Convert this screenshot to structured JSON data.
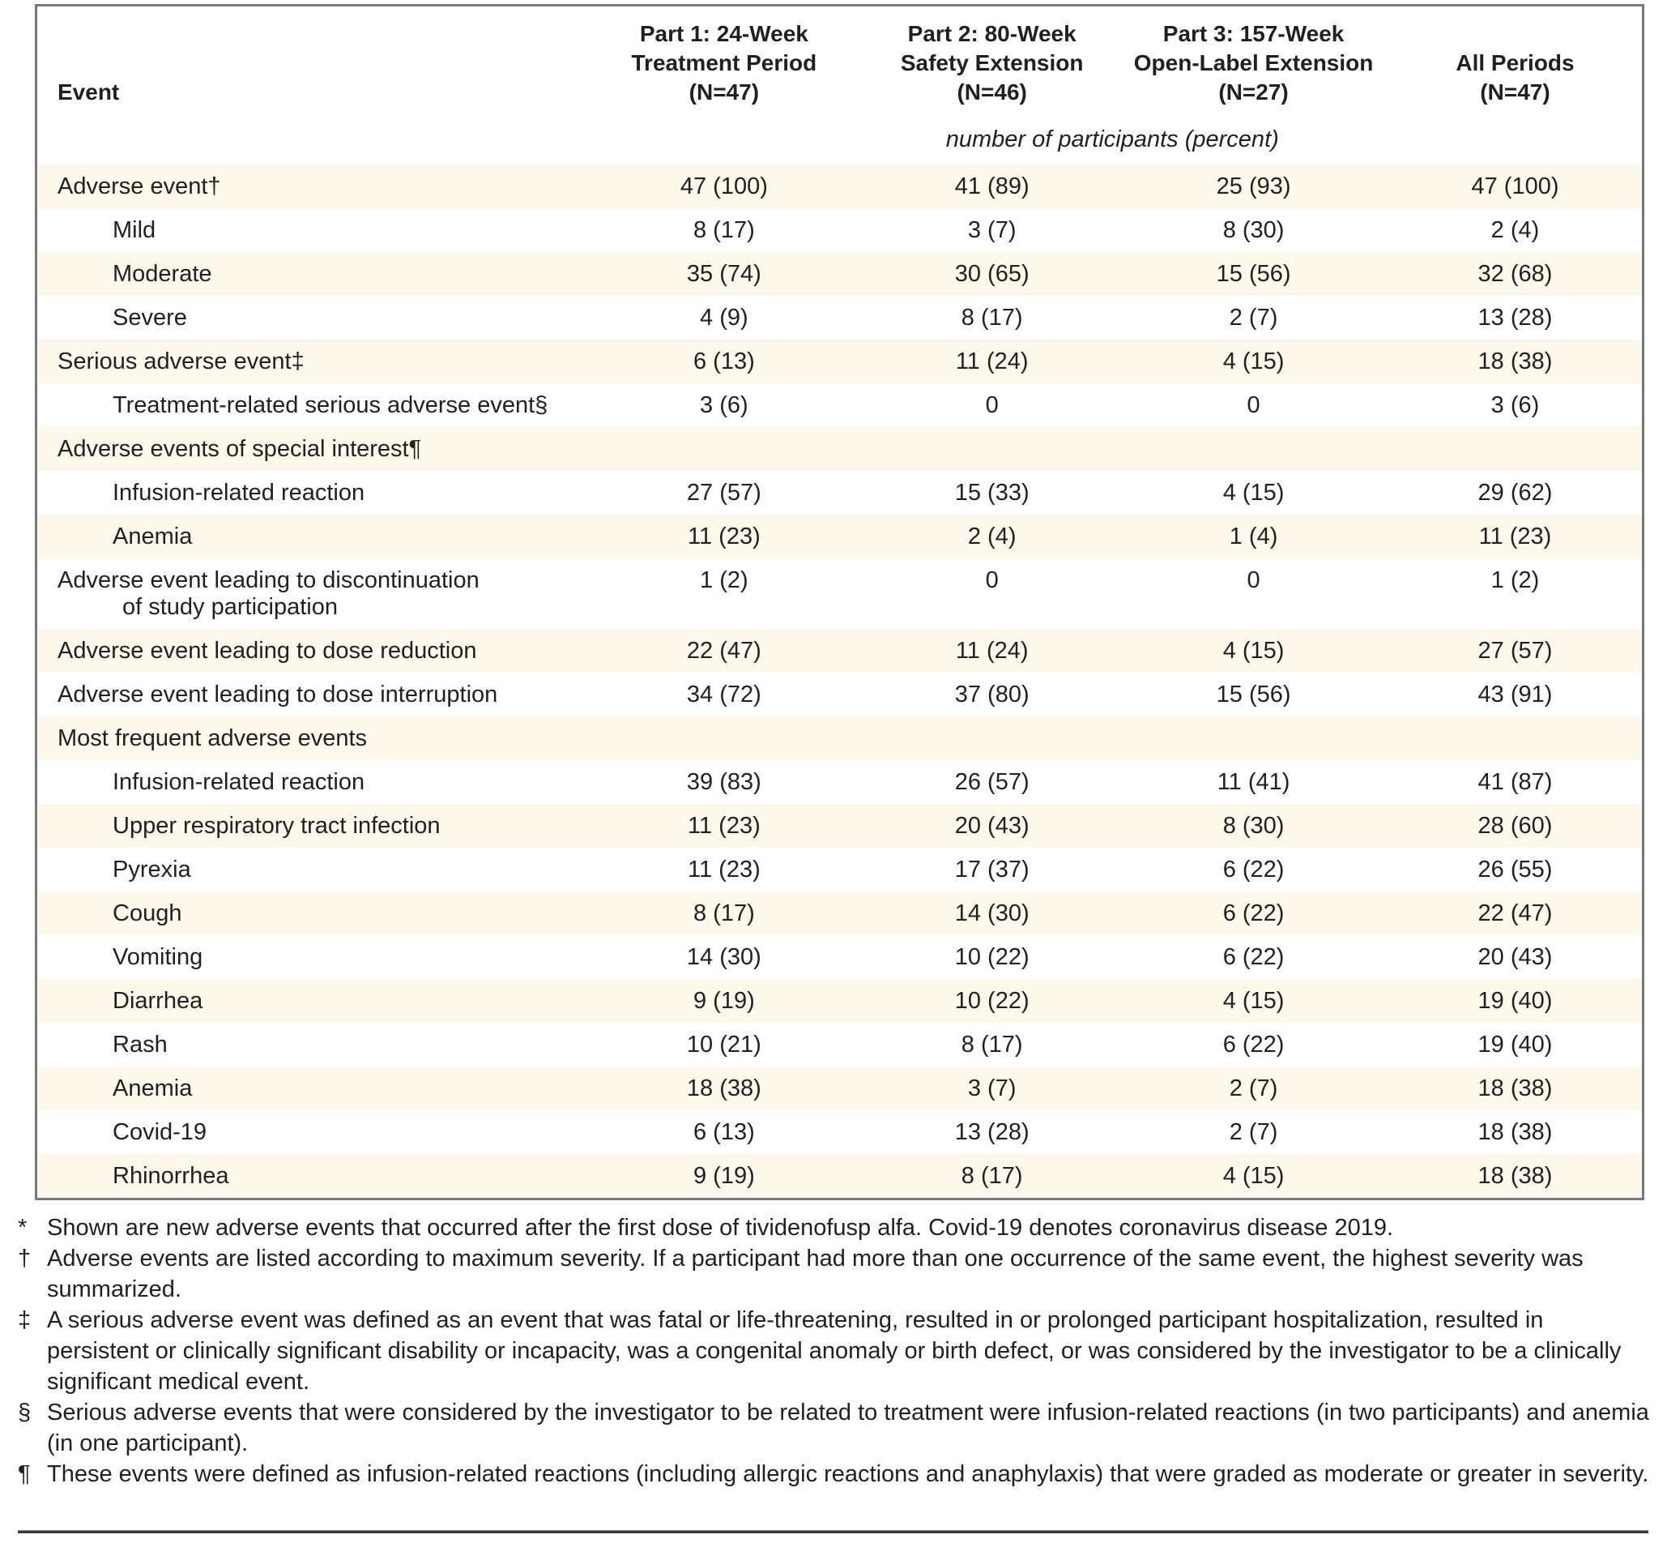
{
  "colors": {
    "row_shade": "#FDF8EC",
    "table_border": "#77787B",
    "text": "#231F20",
    "bottom_rule": "#3A3A3C"
  },
  "table": {
    "corner_label": "Event",
    "columns": [
      {
        "lines": [
          "Part 1: 24-Week",
          "Treatment Period",
          "(N=47)"
        ]
      },
      {
        "lines": [
          "Part 2: 80-Week",
          "Safety Extension",
          "(N=46)"
        ]
      },
      {
        "lines": [
          "Part 3: 157-Week",
          "Open-Label Extension",
          "(N=27)"
        ]
      },
      {
        "lines": [
          "",
          "All Periods",
          "(N=47)"
        ]
      }
    ],
    "units_note": "number of participants (percent)",
    "rows": [
      {
        "label": "Adverse event†",
        "indent": 0,
        "shaded": true,
        "values": [
          "47 (100)",
          "41 (89)",
          "25 (93)",
          "47 (100)"
        ]
      },
      {
        "label": "Mild",
        "indent": 1,
        "shaded": false,
        "values": [
          "8 (17)",
          "3 (7)",
          "8 (30)",
          "2 (4)"
        ]
      },
      {
        "label": "Moderate",
        "indent": 1,
        "shaded": true,
        "values": [
          "35 (74)",
          "30 (65)",
          "15 (56)",
          "32 (68)"
        ]
      },
      {
        "label": "Severe",
        "indent": 1,
        "shaded": false,
        "values": [
          "4 (9)",
          "8 (17)",
          "2 (7)",
          "13 (28)"
        ]
      },
      {
        "label": "Serious adverse event‡",
        "indent": 0,
        "shaded": true,
        "values": [
          "6 (13)",
          "11 (24)",
          "4 (15)",
          "18 (38)"
        ]
      },
      {
        "label": "Treatment-related serious adverse event§",
        "indent": 1,
        "shaded": false,
        "values": [
          "3 (6)",
          "0",
          "0",
          "3 (6)"
        ]
      },
      {
        "label": "Adverse events of special interest¶",
        "indent": 0,
        "shaded": true,
        "values": [
          "",
          "",
          "",
          ""
        ]
      },
      {
        "label": "Infusion-related reaction",
        "indent": 1,
        "shaded": false,
        "values": [
          "27 (57)",
          "15 (33)",
          "4 (15)",
          "29 (62)"
        ]
      },
      {
        "label": "Anemia",
        "indent": 1,
        "shaded": true,
        "values": [
          "11 (23)",
          "2 (4)",
          "1 (4)",
          "11 (23)"
        ]
      },
      {
        "label": "Adverse event leading to discontinuation",
        "label2": "of study participation",
        "indent": 0,
        "shaded": false,
        "values": [
          "1 (2)",
          "0",
          "0",
          "1 (2)"
        ]
      },
      {
        "label": "Adverse event leading to dose reduction",
        "indent": 0,
        "shaded": true,
        "values": [
          "22 (47)",
          "11 (24)",
          "4 (15)",
          "27 (57)"
        ]
      },
      {
        "label": "Adverse event leading to dose interruption",
        "indent": 0,
        "shaded": false,
        "values": [
          "34 (72)",
          "37 (80)",
          "15 (56)",
          "43 (91)"
        ]
      },
      {
        "label": "Most frequent adverse events",
        "indent": 0,
        "shaded": true,
        "values": [
          "",
          "",
          "",
          ""
        ]
      },
      {
        "label": "Infusion-related reaction",
        "indent": 1,
        "shaded": false,
        "values": [
          "39 (83)",
          "26 (57)",
          "11 (41)",
          "41 (87)"
        ]
      },
      {
        "label": "Upper respiratory tract infection",
        "indent": 1,
        "shaded": true,
        "values": [
          "11 (23)",
          "20 (43)",
          "8 (30)",
          "28 (60)"
        ]
      },
      {
        "label": "Pyrexia",
        "indent": 1,
        "shaded": false,
        "values": [
          "11 (23)",
          "17 (37)",
          "6 (22)",
          "26 (55)"
        ]
      },
      {
        "label": "Cough",
        "indent": 1,
        "shaded": true,
        "values": [
          "8 (17)",
          "14 (30)",
          "6 (22)",
          "22 (47)"
        ]
      },
      {
        "label": "Vomiting",
        "indent": 1,
        "shaded": false,
        "values": [
          "14 (30)",
          "10 (22)",
          "6 (22)",
          "20 (43)"
        ]
      },
      {
        "label": "Diarrhea",
        "indent": 1,
        "shaded": true,
        "values": [
          "9 (19)",
          "10 (22)",
          "4 (15)",
          "19 (40)"
        ]
      },
      {
        "label": "Rash",
        "indent": 1,
        "shaded": false,
        "values": [
          "10 (21)",
          "8 (17)",
          "6 (22)",
          "19 (40)"
        ]
      },
      {
        "label": "Anemia",
        "indent": 1,
        "shaded": true,
        "values": [
          "18 (38)",
          "3 (7)",
          "2 (7)",
          "18 (38)"
        ]
      },
      {
        "label": "Covid-19",
        "indent": 1,
        "shaded": false,
        "values": [
          "6 (13)",
          "13 (28)",
          "2 (7)",
          "18 (38)"
        ]
      },
      {
        "label": "Rhinorrhea",
        "indent": 1,
        "shaded": true,
        "values": [
          "9 (19)",
          "8 (17)",
          "4 (15)",
          "18 (38)"
        ]
      }
    ]
  },
  "footnotes": [
    {
      "marker": "*",
      "text": "Shown are new adverse events that occurred after the first dose of tividenofusp alfa. Covid-19 denotes coronavirus disease 2019."
    },
    {
      "marker": "†",
      "text": "Adverse events are listed according to maximum severity. If a participant had more than one occurrence of the same event, the highest severity was summarized."
    },
    {
      "marker": "‡",
      "text": "A serious adverse event was defined as an event that was fatal or life-threatening, resulted in or prolonged participant hospitalization, resulted in persistent or clinically significant disability or incapacity, was a congenital anomaly or birth defect, or was considered by the investigator to be a clinically significant medical event."
    },
    {
      "marker": "§",
      "text": "Serious adverse events that were considered by the investigator to be related to treatment were infusion-related reactions (in two participants) and anemia (in one participant)."
    },
    {
      "marker": "¶",
      "text": "These events were defined as infusion-related reactions (including allergic reactions and anaphylaxis) that were graded as moderate or greater in severity."
    }
  ]
}
